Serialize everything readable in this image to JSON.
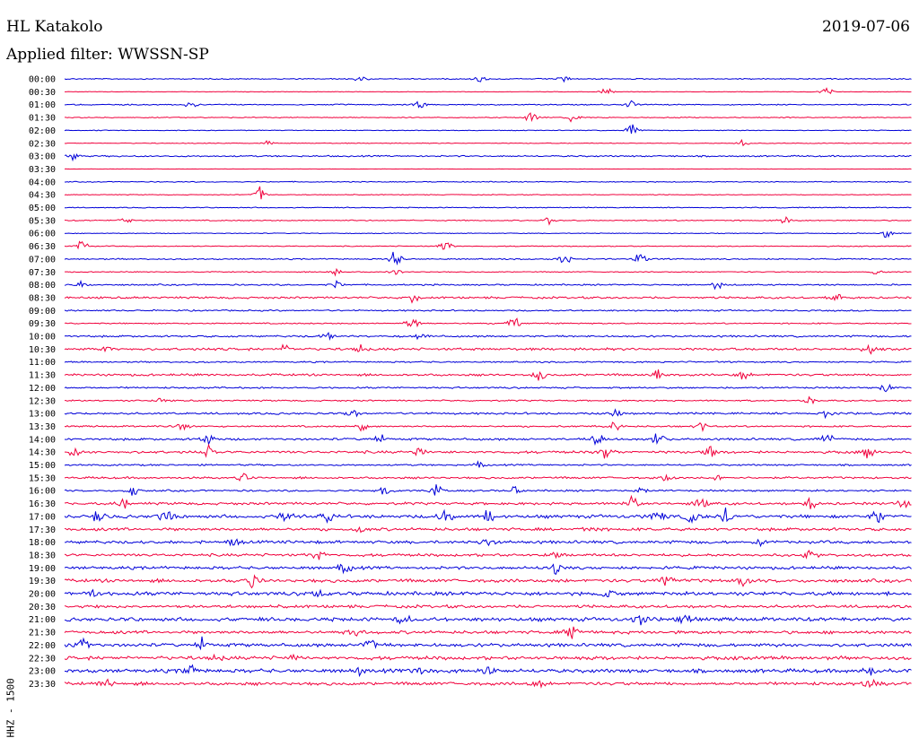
{
  "header": {
    "station": "HL Katakolo",
    "date": "2019-07-06",
    "filter": "Applied filter: WWSSN-SP"
  },
  "colors": {
    "even_trace": "#0000d8",
    "odd_trace": "#f0003c",
    "text": "#000000"
  },
  "chart_data": {
    "type": "line",
    "title": "HL Katakolo",
    "subtitle": "Applied filter: WWSSN-SP",
    "date": "2019-07-06",
    "ylabel": "HHZ - 1500",
    "xlabel": "",
    "grid": false,
    "legend": "none",
    "row_labels": [
      "00:00",
      "00:30",
      "01:00",
      "01:30",
      "02:00",
      "02:30",
      "03:00",
      "03:30",
      "04:00",
      "04:30",
      "05:00",
      "05:30",
      "06:00",
      "06:30",
      "07:00",
      "07:30",
      "08:00",
      "08:30",
      "09:00",
      "09:30",
      "10:00",
      "10:30",
      "11:00",
      "11:30",
      "12:00",
      "12:30",
      "13:00",
      "13:30",
      "14:00",
      "14:30",
      "15:00",
      "15:30",
      "16:00",
      "16:30",
      "17:00",
      "17:30",
      "18:00",
      "18:30",
      "19:00",
      "19:30",
      "20:00",
      "20:30",
      "21:00",
      "21:30",
      "22:00",
      "22:30",
      "23:00",
      "23:30"
    ],
    "row_noise_level": [
      0.6,
      0.3,
      0.6,
      0.5,
      0.4,
      0.4,
      0.8,
      0.2,
      0.5,
      0.4,
      0.5,
      0.6,
      0.4,
      0.5,
      0.7,
      0.5,
      0.8,
      1.1,
      0.8,
      0.7,
      1.0,
      1.3,
      0.8,
      1.2,
      0.9,
      0.8,
      1.1,
      0.9,
      1.2,
      1.4,
      0.9,
      1.1,
      1.0,
      1.4,
      1.8,
      1.6,
      1.6,
      1.5,
      1.6,
      1.8,
      2.0,
      1.6,
      2.0,
      1.7,
      1.8,
      1.9,
      2.0,
      1.7
    ],
    "events": [
      {
        "row": 0,
        "t": [
          0.35,
          0.49,
          0.59
        ]
      },
      {
        "row": 1,
        "t": [
          0.64,
          0.9
        ]
      },
      {
        "row": 2,
        "t": [
          0.15,
          0.42,
          0.67
        ]
      },
      {
        "row": 3,
        "t": [
          0.55,
          0.6
        ]
      },
      {
        "row": 4,
        "t": [
          0.67
        ]
      },
      {
        "row": 5,
        "t": [
          0.24,
          0.8
        ]
      },
      {
        "row": 6,
        "t": [
          0.01
        ]
      },
      {
        "row": 9,
        "t": [
          0.23
        ]
      },
      {
        "row": 11,
        "t": [
          0.07,
          0.57,
          0.85
        ]
      },
      {
        "row": 12,
        "t": [
          0.97
        ]
      },
      {
        "row": 13,
        "t": [
          0.02,
          0.45
        ]
      },
      {
        "row": 14,
        "t": [
          0.39,
          0.59,
          0.68
        ]
      },
      {
        "row": 15,
        "t": [
          0.32,
          0.39,
          0.96
        ]
      },
      {
        "row": 16,
        "t": [
          0.02,
          0.32,
          0.77
        ]
      },
      {
        "row": 17,
        "t": [
          0.41,
          0.91
        ]
      },
      {
        "row": 19,
        "t": [
          0.41,
          0.53
        ]
      },
      {
        "row": 20,
        "t": [
          0.31,
          0.42
        ]
      },
      {
        "row": 21,
        "t": [
          0.05,
          0.26,
          0.35,
          0.95
        ]
      },
      {
        "row": 23,
        "t": [
          0.56,
          0.7,
          0.8
        ]
      },
      {
        "row": 24,
        "t": [
          0.97
        ]
      },
      {
        "row": 25,
        "t": [
          0.11,
          0.88
        ]
      },
      {
        "row": 26,
        "t": [
          0.34,
          0.65,
          0.9
        ]
      },
      {
        "row": 27,
        "t": [
          0.14,
          0.35,
          0.65,
          0.75
        ]
      },
      {
        "row": 28,
        "t": [
          0.17,
          0.37,
          0.63,
          0.7,
          0.9
        ]
      },
      {
        "row": 29,
        "t": [
          0.01,
          0.17,
          0.42,
          0.64,
          0.76,
          0.95
        ]
      },
      {
        "row": 30,
        "t": [
          0.49
        ]
      },
      {
        "row": 31,
        "t": [
          0.21,
          0.71,
          0.77
        ]
      },
      {
        "row": 32,
        "t": [
          0.08,
          0.38,
          0.44,
          0.53,
          0.68
        ]
      },
      {
        "row": 33,
        "t": [
          0.07,
          0.67,
          0.75,
          0.88,
          0.99
        ]
      },
      {
        "row": 34,
        "t": [
          0.04,
          0.12,
          0.26,
          0.31,
          0.45,
          0.5,
          0.7,
          0.74,
          0.78,
          0.96
        ]
      },
      {
        "row": 35,
        "t": [
          0.35,
          0.62
        ]
      },
      {
        "row": 36,
        "t": [
          0.2,
          0.5,
          0.82
        ]
      },
      {
        "row": 37,
        "t": [
          0.3,
          0.58,
          0.88
        ]
      },
      {
        "row": 38,
        "t": [
          0.33,
          0.58
        ]
      },
      {
        "row": 39,
        "t": [
          0.22,
          0.71,
          0.8
        ]
      },
      {
        "row": 40,
        "t": [
          0.03,
          0.3,
          0.64
        ]
      },
      {
        "row": 42,
        "t": [
          0.4,
          0.68,
          0.73
        ]
      },
      {
        "row": 43,
        "t": [
          0.34,
          0.6
        ]
      },
      {
        "row": 44,
        "t": [
          0.02,
          0.16,
          0.36
        ]
      },
      {
        "row": 45,
        "t": [
          0.18,
          0.27
        ]
      },
      {
        "row": 46,
        "t": [
          0.15,
          0.35,
          0.42,
          0.5,
          0.95
        ]
      },
      {
        "row": 47,
        "t": [
          0.05,
          0.56,
          0.95
        ]
      }
    ]
  }
}
